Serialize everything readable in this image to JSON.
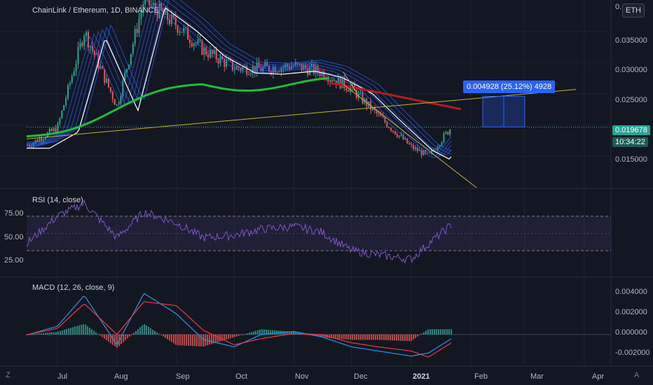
{
  "title": "ChainLink / Ethereum, 1D, BINANCE",
  "quote_currency": "ETH",
  "price_label": "0.019678",
  "countdown": "10:34:22",
  "measure_label": "0.004928 (25.12%) 4928",
  "price_axis": [
    "0.035000",
    "0.030000",
    "0.025000",
    "0.015000"
  ],
  "top_partial_label": "0.",
  "rsi": {
    "title": "RSI (14, close)",
    "ticks": [
      "75.00",
      "50.00",
      "25.00"
    ]
  },
  "macd": {
    "title": "MACD (12, 26, close, 9)",
    "ticks": [
      "0.004000",
      "0.002000",
      "0.000000",
      "-0.002000"
    ]
  },
  "time_axis": [
    "Jul",
    "Aug",
    "Sep",
    "Oct",
    "Nov",
    "Dec",
    "2021",
    "Feb",
    "Mar",
    "Apr"
  ],
  "corner_left": "Z",
  "corner_right": "A",
  "colors": {
    "bg": "#131722",
    "up": "#26a69a",
    "down": "#ef5350",
    "rsi": "#7e57c2",
    "macd": "#2196f3",
    "signal": "#f23645",
    "ma_green": "#1fbd3b",
    "ma_red": "#b71c1c",
    "ma_white": "#ffffff",
    "trend": "#c8b02f",
    "measure": "#2962ff"
  },
  "chart_data": {
    "type": "line",
    "x": [
      "2020-06-16",
      "2020-07-01",
      "2020-07-15",
      "2020-08-01",
      "2020-08-15",
      "2020-09-01",
      "2020-09-15",
      "2020-10-01",
      "2020-10-15",
      "2020-11-01",
      "2020-11-15",
      "2020-12-01",
      "2020-12-15",
      "2021-01-01",
      "2021-01-10",
      "2021-01-22"
    ],
    "series": [
      {
        "values": [
          0.0168,
          0.0195,
          0.035,
          0.023,
          0.04,
          0.036,
          0.032,
          0.0292,
          0.029,
          0.0295,
          0.0285,
          0.0258,
          0.0215,
          0.0165,
          0.015,
          0.0197
        ]
      }
    ],
    "ylim": [
      0.01,
      0.04
    ],
    "rsi_values": [
      40,
      70,
      85,
      45,
      75,
      62,
      45,
      48,
      55,
      58,
      52,
      30,
      25,
      20,
      38,
      60
    ],
    "macd_values": [
      0.0,
      0.0008,
      0.0038,
      -0.001,
      0.004,
      0.002,
      -0.0005,
      -0.0012,
      0.0,
      0.0003,
      -0.0002,
      -0.0012,
      -0.0016,
      -0.0021,
      -0.0018,
      -0.0004
    ],
    "signal_values": [
      0.0,
      0.0006,
      0.003,
      0.0,
      0.0032,
      0.0028,
      0.0004,
      -0.001,
      -0.0004,
      0.0001,
      0.0,
      -0.0008,
      -0.0012,
      -0.0016,
      -0.0022,
      -0.0008
    ],
    "xlim": [
      "2020-06-15",
      "2021-04-15"
    ]
  }
}
